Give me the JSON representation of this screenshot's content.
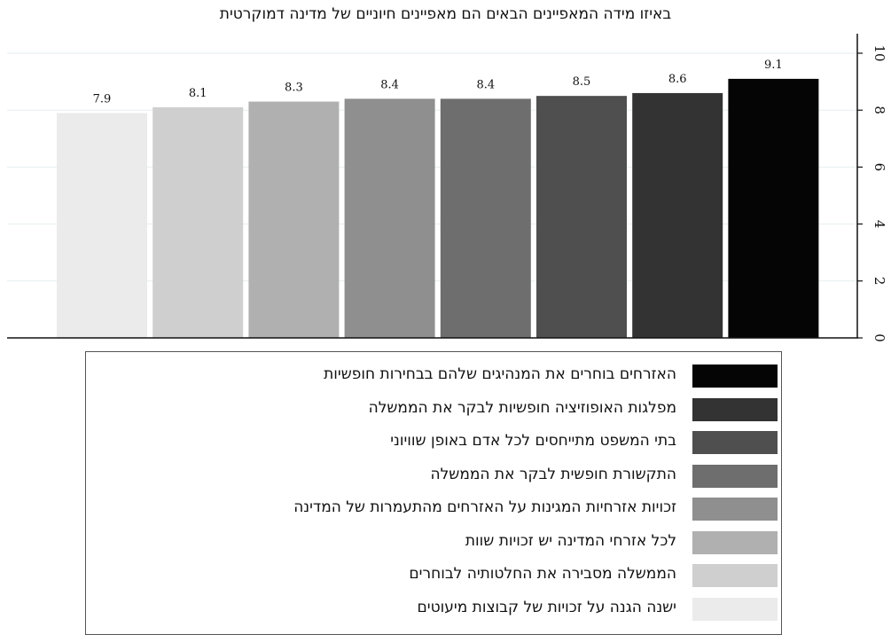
{
  "chart_data": {
    "type": "bar",
    "title": "באיזו מידה המאפיינים הבאים הם מאפיינים חיוניים של מדינה דמוקרטית",
    "xlabel": "",
    "ylabel": "",
    "ylim": [
      0,
      10
    ],
    "yticks": [
      "0",
      "2",
      "4",
      "6",
      "8",
      "10"
    ],
    "y_axis_side": "right",
    "grid": true,
    "legend_position": "bottom",
    "series": [
      {
        "name": "ישנה הגנה על זכויות של קבוצות מיעוטים",
        "value": 7.9,
        "label": "7.9",
        "color": "#ebebeb"
      },
      {
        "name": "הממשלה מסבירה את החלטותיה לבוחרים",
        "value": 8.1,
        "label": "8.1",
        "color": "#cfcfcf"
      },
      {
        "name": "לכל אזרחי המדינה יש זכויות שוות",
        "value": 8.3,
        "label": "8.3",
        "color": "#b0b0b0"
      },
      {
        "name": "זכויות אזרחיות המגינות על האזרחים מהתעמרות של המדינה",
        "value": 8.4,
        "label": "8.4",
        "color": "#8f8f8f"
      },
      {
        "name": "התקשורת חופשית לבקר את הממשלה",
        "value": 8.4,
        "label": "8.4",
        "color": "#6e6e6e"
      },
      {
        "name": "בתי המשפט מתייחסים לכל אדם באופן שוויוני",
        "value": 8.5,
        "label": "8.5",
        "color": "#4f4f4f"
      },
      {
        "name": "מפלגות האופוזיציה חופשיות לבקר את הממשלה",
        "value": 8.6,
        "label": "8.6",
        "color": "#333333"
      },
      {
        "name": "האזרחים בוחרים את המנהיגים שלהם בבחירות חופשיות",
        "value": 9.1,
        "label": "9.1",
        "color": "#050505"
      }
    ]
  }
}
